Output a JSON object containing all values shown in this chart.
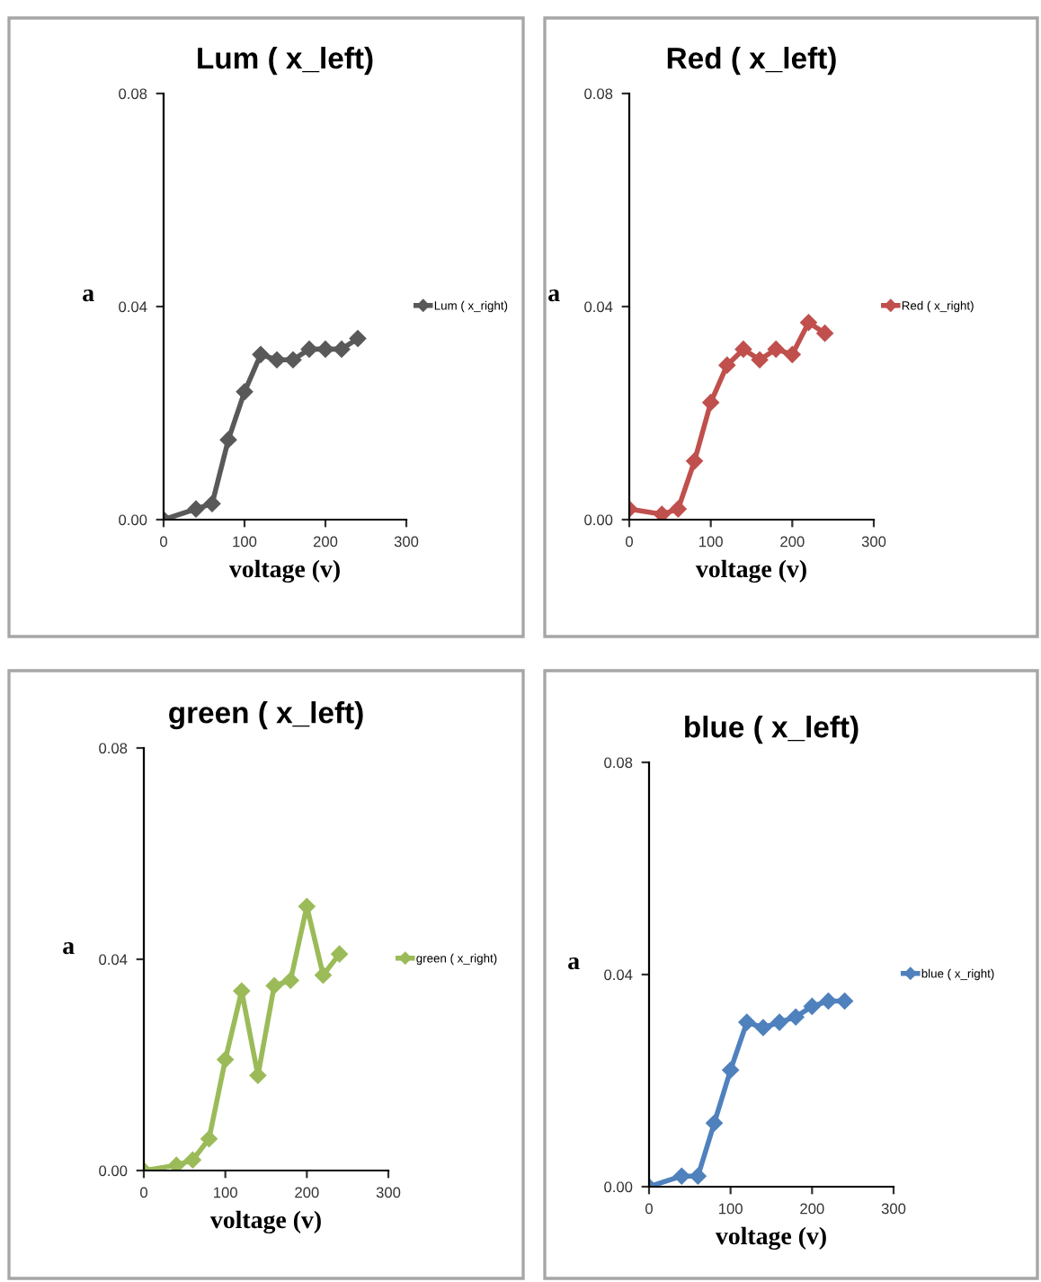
{
  "chart_data": [
    {
      "type": "line",
      "title": "Lum ( x_left)",
      "xlabel": "voltage (v)",
      "ylabel": "a",
      "x": [
        0,
        40,
        60,
        80,
        100,
        120,
        140,
        160,
        180,
        200,
        220,
        240
      ],
      "series": [
        {
          "name": "Lum ( x_right)",
          "color": "#595959",
          "values": [
            0,
            0.002,
            0.003,
            0.015,
            0.024,
            0.031,
            0.03,
            0.03,
            0.032,
            0.032,
            0.032,
            0.034
          ]
        }
      ],
      "xlim": [
        0,
        300
      ],
      "xticks": [
        0,
        100,
        200,
        300
      ],
      "ylim": [
        0,
        0.08
      ],
      "yticks": [
        {
          "value": 0,
          "label": "0.00"
        },
        {
          "value": 0.04,
          "label": "0.04"
        },
        {
          "value": 0.08,
          "label": "0.08"
        }
      ],
      "marker": "diamond",
      "legend": "right",
      "grid": false
    },
    {
      "type": "line",
      "title": "Red ( x_left)",
      "xlabel": "voltage (v)",
      "ylabel": "a",
      "x": [
        0,
        40,
        60,
        80,
        100,
        120,
        140,
        160,
        180,
        200,
        220,
        240
      ],
      "series": [
        {
          "name": "Red ( x_right)",
          "color": "#c0504d",
          "values": [
            0.002,
            0.001,
            0.002,
            0.011,
            0.022,
            0.029,
            0.032,
            0.03,
            0.032,
            0.031,
            0.037,
            0.035
          ]
        }
      ],
      "xlim": [
        0,
        300
      ],
      "xticks": [
        0,
        100,
        200,
        300
      ],
      "ylim": [
        0,
        0.08
      ],
      "yticks": [
        {
          "value": 0,
          "label": "0.00"
        },
        {
          "value": 0.04,
          "label": "0.04"
        },
        {
          "value": 0.08,
          "label": "0.08"
        }
      ],
      "marker": "diamond",
      "legend": "right",
      "grid": false
    },
    {
      "type": "line",
      "title": "green ( x_left)",
      "xlabel": "voltage (v)",
      "ylabel": "a",
      "x": [
        0,
        40,
        60,
        80,
        100,
        120,
        140,
        160,
        180,
        200,
        220,
        240
      ],
      "series": [
        {
          "name": "green ( x_right)",
          "color": "#9bbb59",
          "values": [
            0,
            0.001,
            0.002,
            0.006,
            0.021,
            0.034,
            0.018,
            0.035,
            0.036,
            0.05,
            0.037,
            0.041
          ]
        }
      ],
      "xlim": [
        0,
        300
      ],
      "xticks": [
        0,
        100,
        200,
        300
      ],
      "ylim": [
        0,
        0.08
      ],
      "yticks": [
        {
          "value": 0,
          "label": "0.00"
        },
        {
          "value": 0.04,
          "label": "0.04"
        },
        {
          "value": 0.08,
          "label": "0.08"
        }
      ],
      "marker": "diamond",
      "legend": "right",
      "grid": false
    },
    {
      "type": "line",
      "title": "blue ( x_left)",
      "xlabel": "voltage (v)",
      "ylabel": "a",
      "x": [
        0,
        40,
        60,
        80,
        100,
        120,
        140,
        160,
        180,
        200,
        220,
        240
      ],
      "series": [
        {
          "name": "blue ( x_right)",
          "color": "#4f81bd",
          "values": [
            0,
            0.002,
            0.002,
            0.012,
            0.022,
            0.031,
            0.03,
            0.031,
            0.032,
            0.034,
            0.035,
            0.035
          ]
        }
      ],
      "xlim": [
        0,
        300
      ],
      "xticks": [
        0,
        100,
        200,
        300
      ],
      "ylim": [
        0,
        0.08
      ],
      "yticks": [
        {
          "value": 0,
          "label": "0.00"
        },
        {
          "value": 0.04,
          "label": "0.04"
        },
        {
          "value": 0.08,
          "label": "0.08"
        }
      ],
      "marker": "diamond",
      "legend": "right",
      "grid": false
    }
  ]
}
